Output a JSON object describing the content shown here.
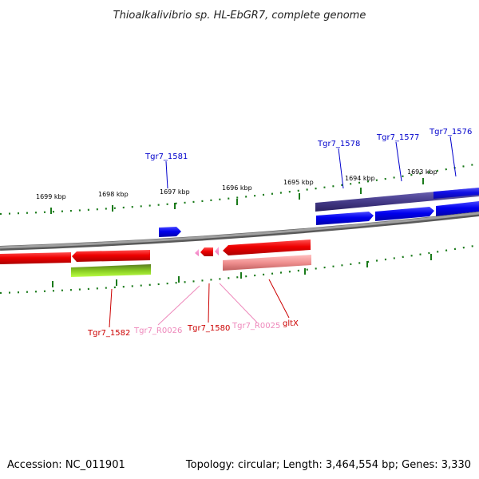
{
  "title": "Thioalkalivibrio sp. HL-EbGR7, complete genome",
  "footer": {
    "accession": "Accession: NC_011901",
    "summary": "Topology: circular; Length: 3,464,554 bp; Genes: 3,330"
  },
  "colors": {
    "backbone": "#808080",
    "tick": "#1a7a1a",
    "cds_forward": "#0000ee",
    "cds_reverse": "#ee0000",
    "rna": "#ff88cc",
    "operon_blue": "#4a4090",
    "operon_red": "#f09090",
    "operon_green": "#88cc22",
    "label_blue": "#0000cc",
    "label_red": "#cc0000",
    "label_pink": "#ee88bb"
  },
  "ticks": [
    {
      "label": "1699 kbp"
    },
    {
      "label": "1698 kbp"
    },
    {
      "label": "1697 kbp"
    },
    {
      "label": "1696 kbp"
    },
    {
      "label": "1695 kbp"
    },
    {
      "label": "1694 kbp"
    },
    {
      "label": "1693 kbp"
    }
  ],
  "gene_labels": [
    {
      "text": "Tgr7_1581",
      "color": "label_blue"
    },
    {
      "text": "Tgr7_1578",
      "color": "label_blue"
    },
    {
      "text": "Tgr7_1577",
      "color": "label_blue"
    },
    {
      "text": "Tgr7_1576",
      "color": "label_blue"
    },
    {
      "text": "Tgr7_1582",
      "color": "label_red"
    },
    {
      "text": "Tgr7_R0026",
      "color": "label_pink"
    },
    {
      "text": "Tgr7_1580",
      "color": "label_red"
    },
    {
      "text": "Tgr7_R0025",
      "color": "label_pink"
    },
    {
      "text": "gltX",
      "color": "label_red"
    }
  ]
}
